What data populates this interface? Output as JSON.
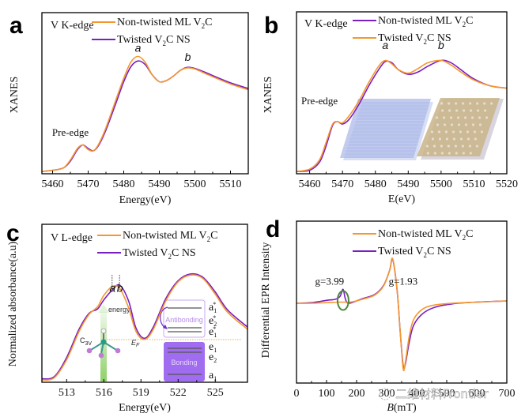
{
  "colors": {
    "orange": "#f5972e",
    "purple": "#7a1fc2",
    "green_ellipse": "#4a8a3a",
    "bonding_fill": "#a06cf0",
    "antibonding_border": "#c9a8f0",
    "fermi_line": "#e8b04a",
    "energy_arrow": "#8fd06a"
  },
  "watermark": "二维材料Frontier",
  "chart_data": [
    {
      "panel": "a",
      "type": "line",
      "title": "V K-edge",
      "xlabel": "Energy(eV)",
      "ylabel": "XANES",
      "xlim": [
        5457,
        5515
      ],
      "ylim": [
        0,
        1.4
      ],
      "xticks": [
        5460,
        5470,
        5480,
        5490,
        5500,
        5510
      ],
      "legend_position": "top-right",
      "annotations": [
        {
          "text": "Pre-edge",
          "x": 5465,
          "y": 0.33
        },
        {
          "text": "a",
          "x": 5484,
          "y": 1.06,
          "italic": true
        },
        {
          "text": "b",
          "x": 5498,
          "y": 0.98,
          "italic": true
        }
      ],
      "series": [
        {
          "name": "Non-twisted ML V2C",
          "name_main": "Non-twisted ML V",
          "name_sub": "2",
          "name_tail": "C",
          "color": "orange",
          "x": [
            5457,
            5460,
            5463,
            5465,
            5467,
            5468.5,
            5470,
            5471.5,
            5473,
            5475,
            5478,
            5480,
            5482,
            5484,
            5486,
            5488,
            5490,
            5492,
            5494,
            5496,
            5498,
            5500,
            5503,
            5506,
            5510,
            5515
          ],
          "y": [
            0.02,
            0.03,
            0.05,
            0.12,
            0.22,
            0.25,
            0.21,
            0.2,
            0.26,
            0.4,
            0.66,
            0.83,
            0.97,
            1.02,
            0.97,
            0.86,
            0.8,
            0.81,
            0.85,
            0.9,
            0.92,
            0.91,
            0.87,
            0.83,
            0.78,
            0.73
          ]
        },
        {
          "name": "Twisted V2C NS",
          "name_main": "Twisted V",
          "name_sub": "2",
          "name_tail": "C NS",
          "color": "purple",
          "x": [
            5457,
            5460,
            5463,
            5465,
            5467,
            5468.5,
            5470,
            5471.5,
            5473,
            5475,
            5478,
            5480,
            5482,
            5484,
            5486,
            5488,
            5490,
            5492,
            5494,
            5496,
            5498,
            5500,
            5503,
            5506,
            5510,
            5515
          ],
          "y": [
            0.02,
            0.03,
            0.05,
            0.11,
            0.21,
            0.25,
            0.22,
            0.2,
            0.25,
            0.38,
            0.63,
            0.8,
            0.93,
            0.98,
            0.95,
            0.86,
            0.8,
            0.81,
            0.85,
            0.9,
            0.925,
            0.915,
            0.88,
            0.84,
            0.79,
            0.74
          ]
        }
      ]
    },
    {
      "panel": "b",
      "type": "line",
      "title": "V K-edge",
      "xlabel": "E(eV)",
      "ylabel": "XANES",
      "xlim": [
        5456,
        5520
      ],
      "ylim": [
        0,
        1.4
      ],
      "xticks": [
        5460,
        5470,
        5480,
        5490,
        5500,
        5510,
        5520
      ],
      "legend_position": "top-right",
      "annotations": [
        {
          "text": "Pre-edge",
          "x": 5463,
          "y": 0.6
        },
        {
          "text": "a",
          "x": 5483,
          "y": 1.08,
          "italic": true
        },
        {
          "text": "b",
          "x": 5500,
          "y": 1.08,
          "italic": true
        }
      ],
      "inset_images": [
        "non-twisted-lattice-blue",
        "twisted-moire-lattice-tan"
      ],
      "series": [
        {
          "name": "Non-twisted ML V2C",
          "name_main": "Non-twisted ML V",
          "name_sub": "2",
          "name_tail": "C",
          "color": "purple",
          "x": [
            5456,
            5460,
            5463,
            5465,
            5467,
            5468.5,
            5470,
            5472,
            5475,
            5478,
            5481,
            5483,
            5485,
            5487,
            5490,
            5493,
            5496,
            5500,
            5503,
            5506,
            5510,
            5515,
            5520
          ],
          "y": [
            0.02,
            0.03,
            0.1,
            0.24,
            0.42,
            0.45,
            0.43,
            0.47,
            0.6,
            0.76,
            0.9,
            0.97,
            0.96,
            0.9,
            0.86,
            0.88,
            0.93,
            0.98,
            0.96,
            0.9,
            0.82,
            0.76,
            0.74
          ]
        },
        {
          "name": "Twisted V2C NS",
          "name_main": "Twisted V",
          "name_sub": "2",
          "name_tail": "C NS",
          "color": "orange",
          "x": [
            5456,
            5460,
            5463,
            5465,
            5467,
            5468.5,
            5470,
            5472,
            5475,
            5478,
            5481,
            5483,
            5485,
            5487,
            5490,
            5493,
            5496,
            5500,
            5503,
            5506,
            5510,
            5515,
            5520
          ],
          "y": [
            0.02,
            0.04,
            0.12,
            0.27,
            0.43,
            0.45,
            0.44,
            0.5,
            0.63,
            0.79,
            0.93,
            0.98,
            0.95,
            0.9,
            0.87,
            0.91,
            0.96,
            0.98,
            0.94,
            0.88,
            0.81,
            0.76,
            0.74
          ]
        }
      ]
    },
    {
      "panel": "c",
      "type": "line",
      "title": "V L-edge",
      "xlabel": "Energy(eV)",
      "ylabel": "Normalized absorbance(a.u)",
      "xlim": [
        511,
        527.6
      ],
      "ylim": [
        0,
        1.4
      ],
      "xticks": [
        513,
        516,
        519,
        522,
        525
      ],
      "legend_position": "top-right",
      "annotations": [
        {
          "text": "a",
          "x": 516.7,
          "y": 0.8,
          "italic": true
        },
        {
          "text": "b",
          "x": 517.3,
          "y": 0.8,
          "italic": true
        }
      ],
      "inset_diagram": {
        "energy_label": "energy",
        "symmetry_label_main": "C",
        "symmetry_label_sub": "3V",
        "fermi_label_main": "E",
        "fermi_label_sub": "F",
        "antibonding_label": "Antibonding",
        "bonding_label": "Bonding",
        "levels": [
          {
            "main": "a",
            "sub": "1",
            "sup": "*"
          },
          {
            "main": "e",
            "sub": "2",
            "sup": "*"
          },
          {
            "main": "e",
            "sub": "1",
            "sup": "*"
          },
          {
            "main": "e",
            "sub": "1",
            "sup": ""
          },
          {
            "main": "e",
            "sub": "2",
            "sup": ""
          },
          {
            "main": "a",
            "sub": "1",
            "sup": ""
          }
        ]
      },
      "series": [
        {
          "name": "Non-twisted ML V2C",
          "name_main": "Non-twisted ML  V",
          "name_sub": "2",
          "name_tail": "C",
          "color": "orange",
          "x": [
            511,
            512,
            513,
            514,
            514.8,
            515.5,
            516,
            516.7,
            517.3,
            518,
            518.6,
            519.3,
            520,
            521,
            522,
            523,
            524,
            525,
            526,
            527.6
          ],
          "y": [
            0.02,
            0.04,
            0.2,
            0.45,
            0.6,
            0.67,
            0.77,
            0.85,
            0.83,
            0.66,
            0.45,
            0.38,
            0.47,
            0.72,
            0.89,
            0.95,
            0.92,
            0.78,
            0.62,
            0.47
          ]
        },
        {
          "name": "Twisted V2C NS",
          "name_main": "Twisted V",
          "name_sub": "2",
          "name_tail": "C NS",
          "color": "purple",
          "x": [
            511,
            512,
            513,
            514,
            514.8,
            515.5,
            516,
            516.7,
            517.3,
            518,
            518.6,
            519.3,
            520,
            521,
            522,
            523,
            524,
            525,
            526,
            527.6
          ],
          "y": [
            0.03,
            0.05,
            0.22,
            0.47,
            0.61,
            0.65,
            0.73,
            0.82,
            0.86,
            0.72,
            0.48,
            0.39,
            0.49,
            0.74,
            0.9,
            0.96,
            0.93,
            0.8,
            0.64,
            0.49
          ]
        }
      ]
    },
    {
      "panel": "d",
      "type": "line",
      "title": "",
      "xlabel_main": "B",
      "xlabel_tail": "(mT)",
      "ylabel": "Differential EPR Intensity",
      "xlim": [
        0,
        700
      ],
      "ylim": [
        -1.4,
        1.4
      ],
      "xticks": [
        0,
        100,
        200,
        300,
        400,
        500,
        600,
        700
      ],
      "legend_position": "top-right",
      "annotations": [
        {
          "text": "g=3.99",
          "x": 110,
          "y": 0.3
        },
        {
          "text": "g=1.93",
          "x": 355,
          "y": 0.3
        }
      ],
      "highlight_ellipse": {
        "x": 155,
        "y": 0.0
      },
      "series": [
        {
          "name": "Non-twisted ML V2C",
          "name_main": "Non-twisted ML V",
          "name_sub": "2",
          "name_tail": "C",
          "color": "orange",
          "x": [
            0,
            50,
            100,
            150,
            180,
            220,
            260,
            290,
            310,
            320,
            335,
            345,
            355,
            362,
            375,
            390,
            420,
            460,
            520,
            600,
            700
          ],
          "y": [
            -0.02,
            -0.02,
            -0.01,
            0,
            0,
            0.05,
            0.12,
            0.28,
            0.55,
            0.75,
            0.2,
            -0.5,
            -1.15,
            -1.05,
            -0.6,
            -0.3,
            -0.12,
            -0.05,
            -0.02,
            0.0,
            0.02
          ]
        },
        {
          "name": "Twisted V2C NS",
          "name_main": "Twisted V",
          "name_sub": "2",
          "name_tail": "C NS",
          "color": "purple",
          "x": [
            0,
            50,
            100,
            130,
            145,
            155,
            163,
            175,
            220,
            260,
            290,
            310,
            320,
            335,
            345,
            355,
            362,
            375,
            390,
            420,
            460,
            520,
            600,
            700
          ],
          "y": [
            -0.02,
            -0.01,
            0.03,
            0.05,
            0.1,
            0.22,
            0.05,
            -0.02,
            0.06,
            0.13,
            0.29,
            0.55,
            0.74,
            0.2,
            -0.5,
            -1.1,
            -1.08,
            -0.7,
            -0.4,
            -0.2,
            -0.09,
            -0.03,
            0.0,
            0.02
          ]
        }
      ]
    }
  ]
}
